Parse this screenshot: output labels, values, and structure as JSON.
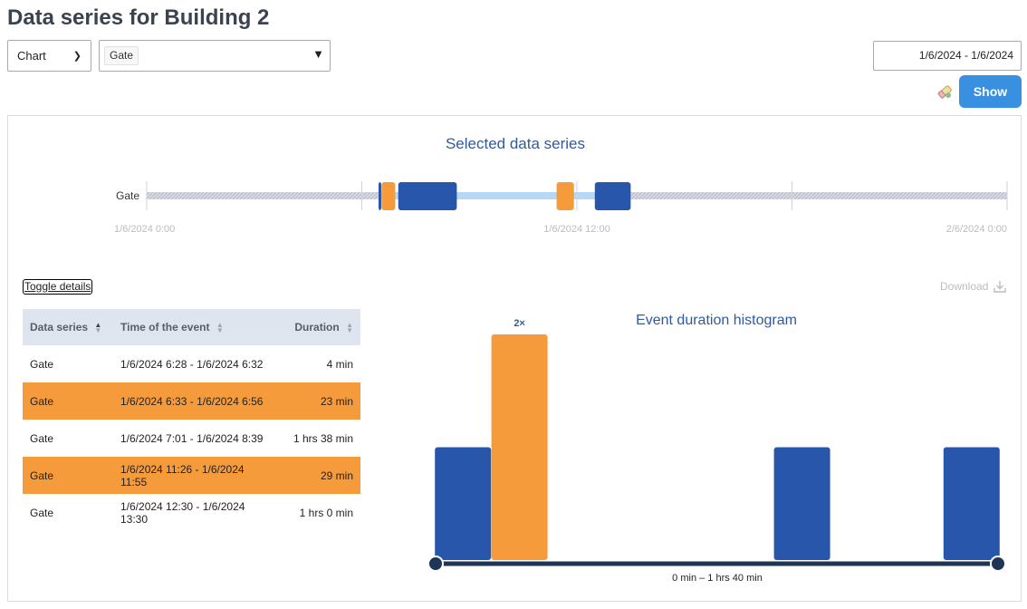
{
  "page": {
    "title": "Data series for Building 2"
  },
  "toolbar": {
    "view_select": "Chart",
    "series_tag": "Gate",
    "date_range": "1/6/2024 - 1/6/2024",
    "show_label": "Show"
  },
  "colors": {
    "blue": "#2856aa",
    "orange": "#f59b3c",
    "light_blue": "#b6d8f5",
    "accent": "#3a90e0"
  },
  "timeline": {
    "title": "Selected data series",
    "series_label": "Gate",
    "tick_labels": [
      "1/6/2024 0:00",
      "1/6/2024 12:00",
      "2/6/2024 0:00"
    ],
    "data_range_hours": [
      6.45,
      13.5
    ],
    "events": [
      {
        "start_h": 6.4667,
        "end_h": 6.5333,
        "type": "blue"
      },
      {
        "start_h": 6.55,
        "end_h": 6.9333,
        "type": "orange"
      },
      {
        "start_h": 7.0167,
        "end_h": 8.65,
        "type": "blue"
      },
      {
        "start_h": 11.4333,
        "end_h": 11.9167,
        "type": "orange"
      },
      {
        "start_h": 12.5,
        "end_h": 13.5,
        "type": "blue"
      }
    ]
  },
  "details": {
    "toggle_label": "Toggle details",
    "download_label": "Download"
  },
  "table": {
    "headers": [
      "Data series",
      "Time of the event",
      "Duration"
    ],
    "rows": [
      {
        "series": "Gate",
        "time": "1/6/2024 6:28 - 1/6/2024 6:32",
        "duration": "4 min",
        "highlight": false
      },
      {
        "series": "Gate",
        "time": "1/6/2024 6:33 - 1/6/2024 6:56",
        "duration": "23 min",
        "highlight": true
      },
      {
        "series": "Gate",
        "time": "1/6/2024 7:01 - 1/6/2024 8:39",
        "duration": "1 hrs 38 min",
        "highlight": false
      },
      {
        "series": "Gate",
        "time": "1/6/2024 11:26 - 1/6/2024 11:55",
        "duration": "29 min",
        "highlight": true
      },
      {
        "series": "Gate",
        "time": "1/6/2024 12:30 - 1/6/2024 13:30",
        "duration": "1 hrs 0 min",
        "highlight": false
      }
    ]
  },
  "chart_data": {
    "type": "bar",
    "title": "Event duration histogram",
    "range_label": "0 min – 1 hrs 40 min",
    "categories": [
      "bin1",
      "bin2",
      "bin3",
      "bin4",
      "bin5",
      "bin6",
      "bin7",
      "bin8",
      "bin9",
      "bin10"
    ],
    "values": [
      1,
      2,
      0,
      0,
      0,
      0,
      1,
      0,
      0,
      1
    ],
    "highlight_index": 1,
    "bar_labels": [
      "",
      "2×",
      "",
      "",
      "",
      "",
      "",
      "",
      "",
      ""
    ],
    "ylim": [
      0,
      2
    ]
  }
}
